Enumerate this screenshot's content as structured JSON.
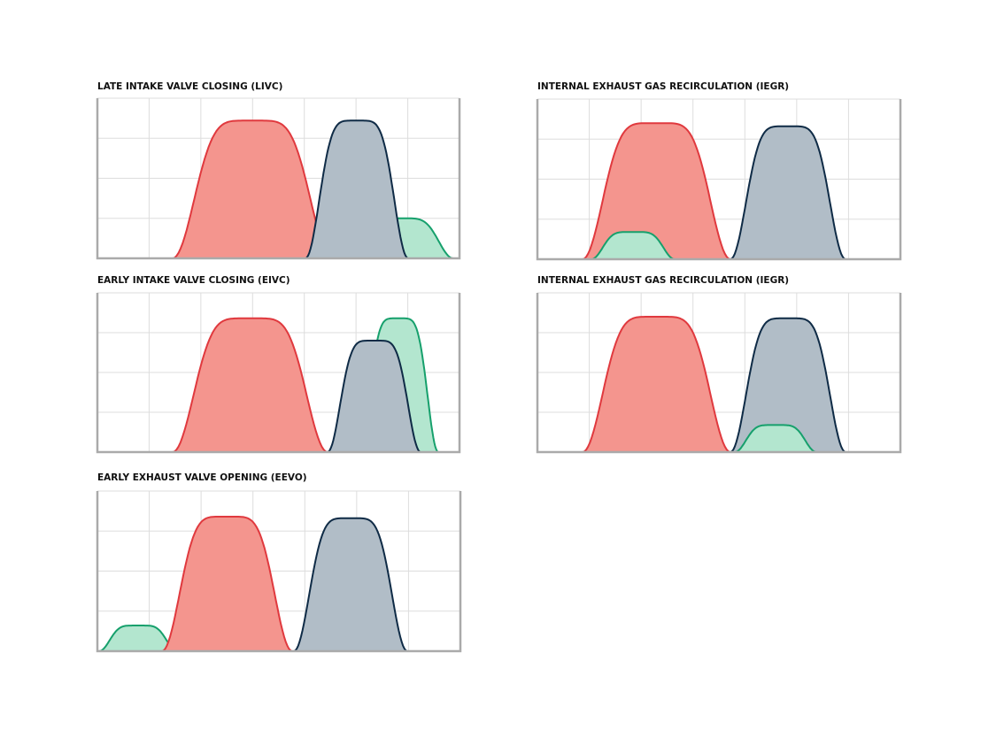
{
  "panels": [
    {
      "title": "LATE INTAKE VALVE CLOSING (LIVC)"
    },
    {
      "title": "INTERNAL EXHAUST GAS RECIRCULATION (IEGR)"
    },
    {
      "title": "EARLY INTAKE VALVE CLOSING (EIVC)"
    },
    {
      "title": "INTERNAL EXHAUST GAS RECIRCULATION (IEGR)"
    },
    {
      "title": "EARLY EXHAUST VALVE OPENING (EEVO)"
    }
  ]
}
